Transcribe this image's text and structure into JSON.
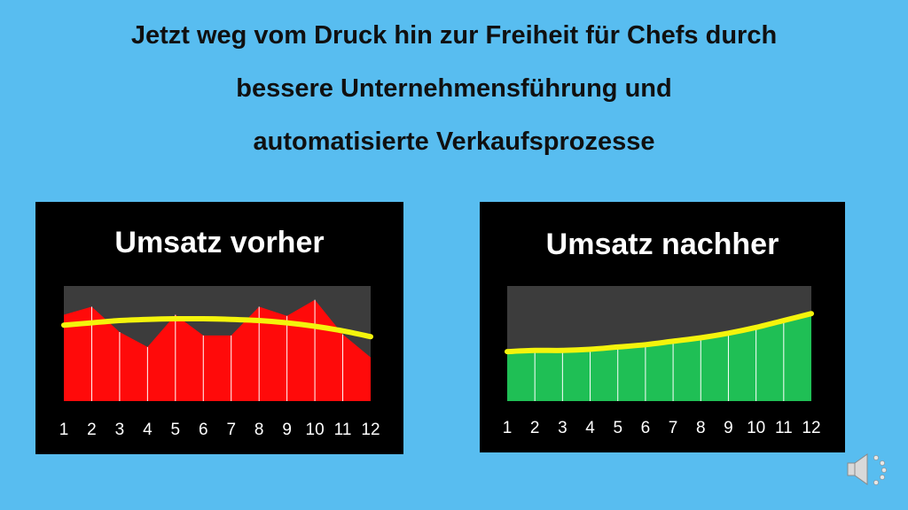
{
  "slide": {
    "title_lines": [
      "Jetzt weg vom Druck hin zur Freiheit für Chefs durch",
      "bessere Unternehmensführung und",
      "automatisierte Verkaufsprozesse"
    ]
  },
  "colors": {
    "background": "#58bdf0",
    "panel": "#000000",
    "plot_area": "#3c3c3c",
    "before_fill": "#ff0a0a",
    "after_fill": "#1fbf55",
    "trend": "#f4f40c",
    "text": "#ffffff"
  },
  "speaker_icon": "speaker-icon",
  "chart_data": [
    {
      "type": "area",
      "title": "Umsatz vorher",
      "categories": [
        "1",
        "2",
        "3",
        "4",
        "5",
        "6",
        "7",
        "8",
        "9",
        "10",
        "11",
        "12"
      ],
      "values": [
        75,
        82,
        60,
        47,
        75,
        57,
        57,
        82,
        74,
        88,
        58,
        38
      ],
      "trend": [
        66,
        68,
        70,
        71,
        71.5,
        71.5,
        71,
        70,
        68,
        65,
        61,
        56
      ],
      "ylim": [
        0,
        100
      ],
      "grid": false,
      "legend": "none"
    },
    {
      "type": "area",
      "title": "Umsatz nachher",
      "categories": [
        "1",
        "2",
        "3",
        "4",
        "5",
        "6",
        "7",
        "8",
        "9",
        "10",
        "11",
        "12"
      ],
      "values": [
        43,
        44,
        44,
        45,
        47,
        49,
        52,
        55,
        59,
        64,
        70,
        76
      ],
      "trend": [
        43,
        44,
        44,
        45,
        47,
        49,
        52,
        55,
        59,
        64,
        70,
        76
      ],
      "ylim": [
        0,
        100
      ],
      "grid": false,
      "legend": "none"
    }
  ]
}
